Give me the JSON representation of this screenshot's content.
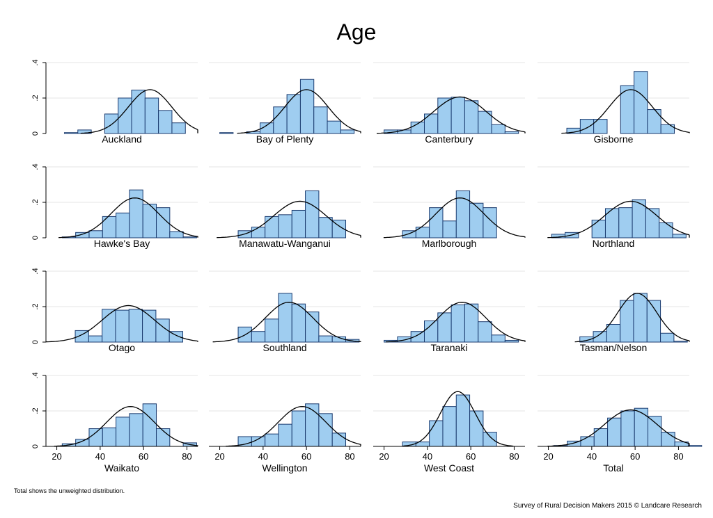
{
  "title": "Age",
  "note": "Total shows the unweighted distribution.",
  "source": "Survey of Rural Decision Makers 2015 © Landcare Research",
  "chart_data": {
    "type": "bar",
    "title": "Age",
    "xlabel": "",
    "ylabel": "",
    "xlim": [
      15,
      85
    ],
    "ylim": [
      0,
      0.4
    ],
    "x_ticks": [
      "20",
      "40",
      "60",
      "80"
    ],
    "x_tick_values": [
      20,
      40,
      60,
      80
    ],
    "y_ticks": [
      "0",
      ".2",
      ".4"
    ],
    "y_tick_values": [
      0,
      0.2,
      0.4
    ],
    "grid": true,
    "bar_color": "#9fcdf0",
    "bar_edge": "#1a3a6e",
    "curve_color": "#000000",
    "panels": [
      {
        "name": "Auckland",
        "bin_start": 23.5,
        "bin_width": 6.2,
        "values": [
          0.005,
          0.02,
          0.0,
          0.11,
          0.2,
          0.245,
          0.2,
          0.13,
          0.06
        ],
        "mean": 63,
        "sd": 10
      },
      {
        "name": "Bay of Plenty",
        "bin_start": 20,
        "bin_width": 6.2,
        "values": [
          0.005,
          0.0,
          0.01,
          0.06,
          0.15,
          0.22,
          0.305,
          0.15,
          0.07,
          0.02
        ],
        "mean": 60,
        "sd": 10
      },
      {
        "name": "Canterbury",
        "bin_start": 20,
        "bin_width": 6.2,
        "values": [
          0.02,
          0.02,
          0.065,
          0.11,
          0.2,
          0.205,
          0.185,
          0.125,
          0.05,
          0.01
        ],
        "mean": 55,
        "sd": 12
      },
      {
        "name": "Gisborne",
        "bin_start": 28.5,
        "bin_width": 6.2,
        "values": [
          0.03,
          0.08,
          0.08,
          0.0,
          0.27,
          0.35,
          0.135,
          0.05
        ],
        "mean": 58,
        "sd": 10
      },
      {
        "name": "Hawke's Bay",
        "bin_start": 22.5,
        "bin_width": 6.2,
        "values": [
          0.005,
          0.03,
          0.04,
          0.12,
          0.14,
          0.27,
          0.19,
          0.17,
          0.035,
          0.005
        ],
        "mean": 56,
        "sd": 11
      },
      {
        "name": "Manawatu-Wanganui",
        "bin_start": 28.5,
        "bin_width": 6.2,
        "values": [
          0.04,
          0.06,
          0.12,
          0.13,
          0.155,
          0.265,
          0.115,
          0.1
        ],
        "mean": 57,
        "sd": 12
      },
      {
        "name": "Marlborough",
        "bin_start": 28.5,
        "bin_width": 6.2,
        "values": [
          0.04,
          0.06,
          0.17,
          0.095,
          0.265,
          0.195,
          0.17
        ],
        "mean": 55,
        "sd": 11
      },
      {
        "name": "Northland",
        "bin_start": 21.5,
        "bin_width": 6.2,
        "values": [
          0.02,
          0.03,
          0.0,
          0.1,
          0.165,
          0.17,
          0.215,
          0.165,
          0.085,
          0.02
        ],
        "mean": 58,
        "sd": 12
      },
      {
        "name": "Otago",
        "bin_start": 28.5,
        "bin_width": 6.2,
        "values": [
          0.065,
          0.035,
          0.185,
          0.18,
          0.185,
          0.18,
          0.13,
          0.06
        ],
        "mean": 53,
        "sd": 12
      },
      {
        "name": "Southland",
        "bin_start": 28.5,
        "bin_width": 6.2,
        "values": [
          0.085,
          0.06,
          0.13,
          0.275,
          0.215,
          0.17,
          0.035,
          0.03,
          0.015
        ],
        "mean": 52,
        "sd": 11
      },
      {
        "name": "Taranaki",
        "bin_start": 20,
        "bin_width": 6.2,
        "values": [
          0.01,
          0.03,
          0.06,
          0.12,
          0.165,
          0.21,
          0.215,
          0.115,
          0.04,
          0.01
        ],
        "mean": 56,
        "sd": 11
      },
      {
        "name": "Tasman/Nelson",
        "bin_start": 34.5,
        "bin_width": 6.2,
        "values": [
          0.03,
          0.06,
          0.1,
          0.235,
          0.275,
          0.235,
          0.05,
          0.005
        ],
        "mean": 61,
        "sd": 9
      },
      {
        "name": "Waikato",
        "bin_start": 22.5,
        "bin_width": 6.2,
        "values": [
          0.015,
          0.04,
          0.1,
          0.105,
          0.165,
          0.185,
          0.24,
          0.1,
          0.0,
          0.02
        ],
        "mean": 54,
        "sd": 11
      },
      {
        "name": "Wellington",
        "bin_start": 28.5,
        "bin_width": 6.2,
        "values": [
          0.055,
          0.055,
          0.07,
          0.125,
          0.2,
          0.24,
          0.185,
          0.075
        ],
        "mean": 58,
        "sd": 11
      },
      {
        "name": "West Coast",
        "bin_start": 28.5,
        "bin_width": 6.2,
        "values": [
          0.025,
          0.025,
          0.145,
          0.225,
          0.29,
          0.2,
          0.08
        ],
        "mean": 54,
        "sd": 8
      },
      {
        "name": "Total",
        "bin_start": 22.5,
        "bin_width": 6.2,
        "values": [
          0.005,
          0.03,
          0.055,
          0.1,
          0.16,
          0.2,
          0.215,
          0.17,
          0.08,
          0.025,
          0.005
        ],
        "mean": 58,
        "sd": 12
      }
    ]
  }
}
